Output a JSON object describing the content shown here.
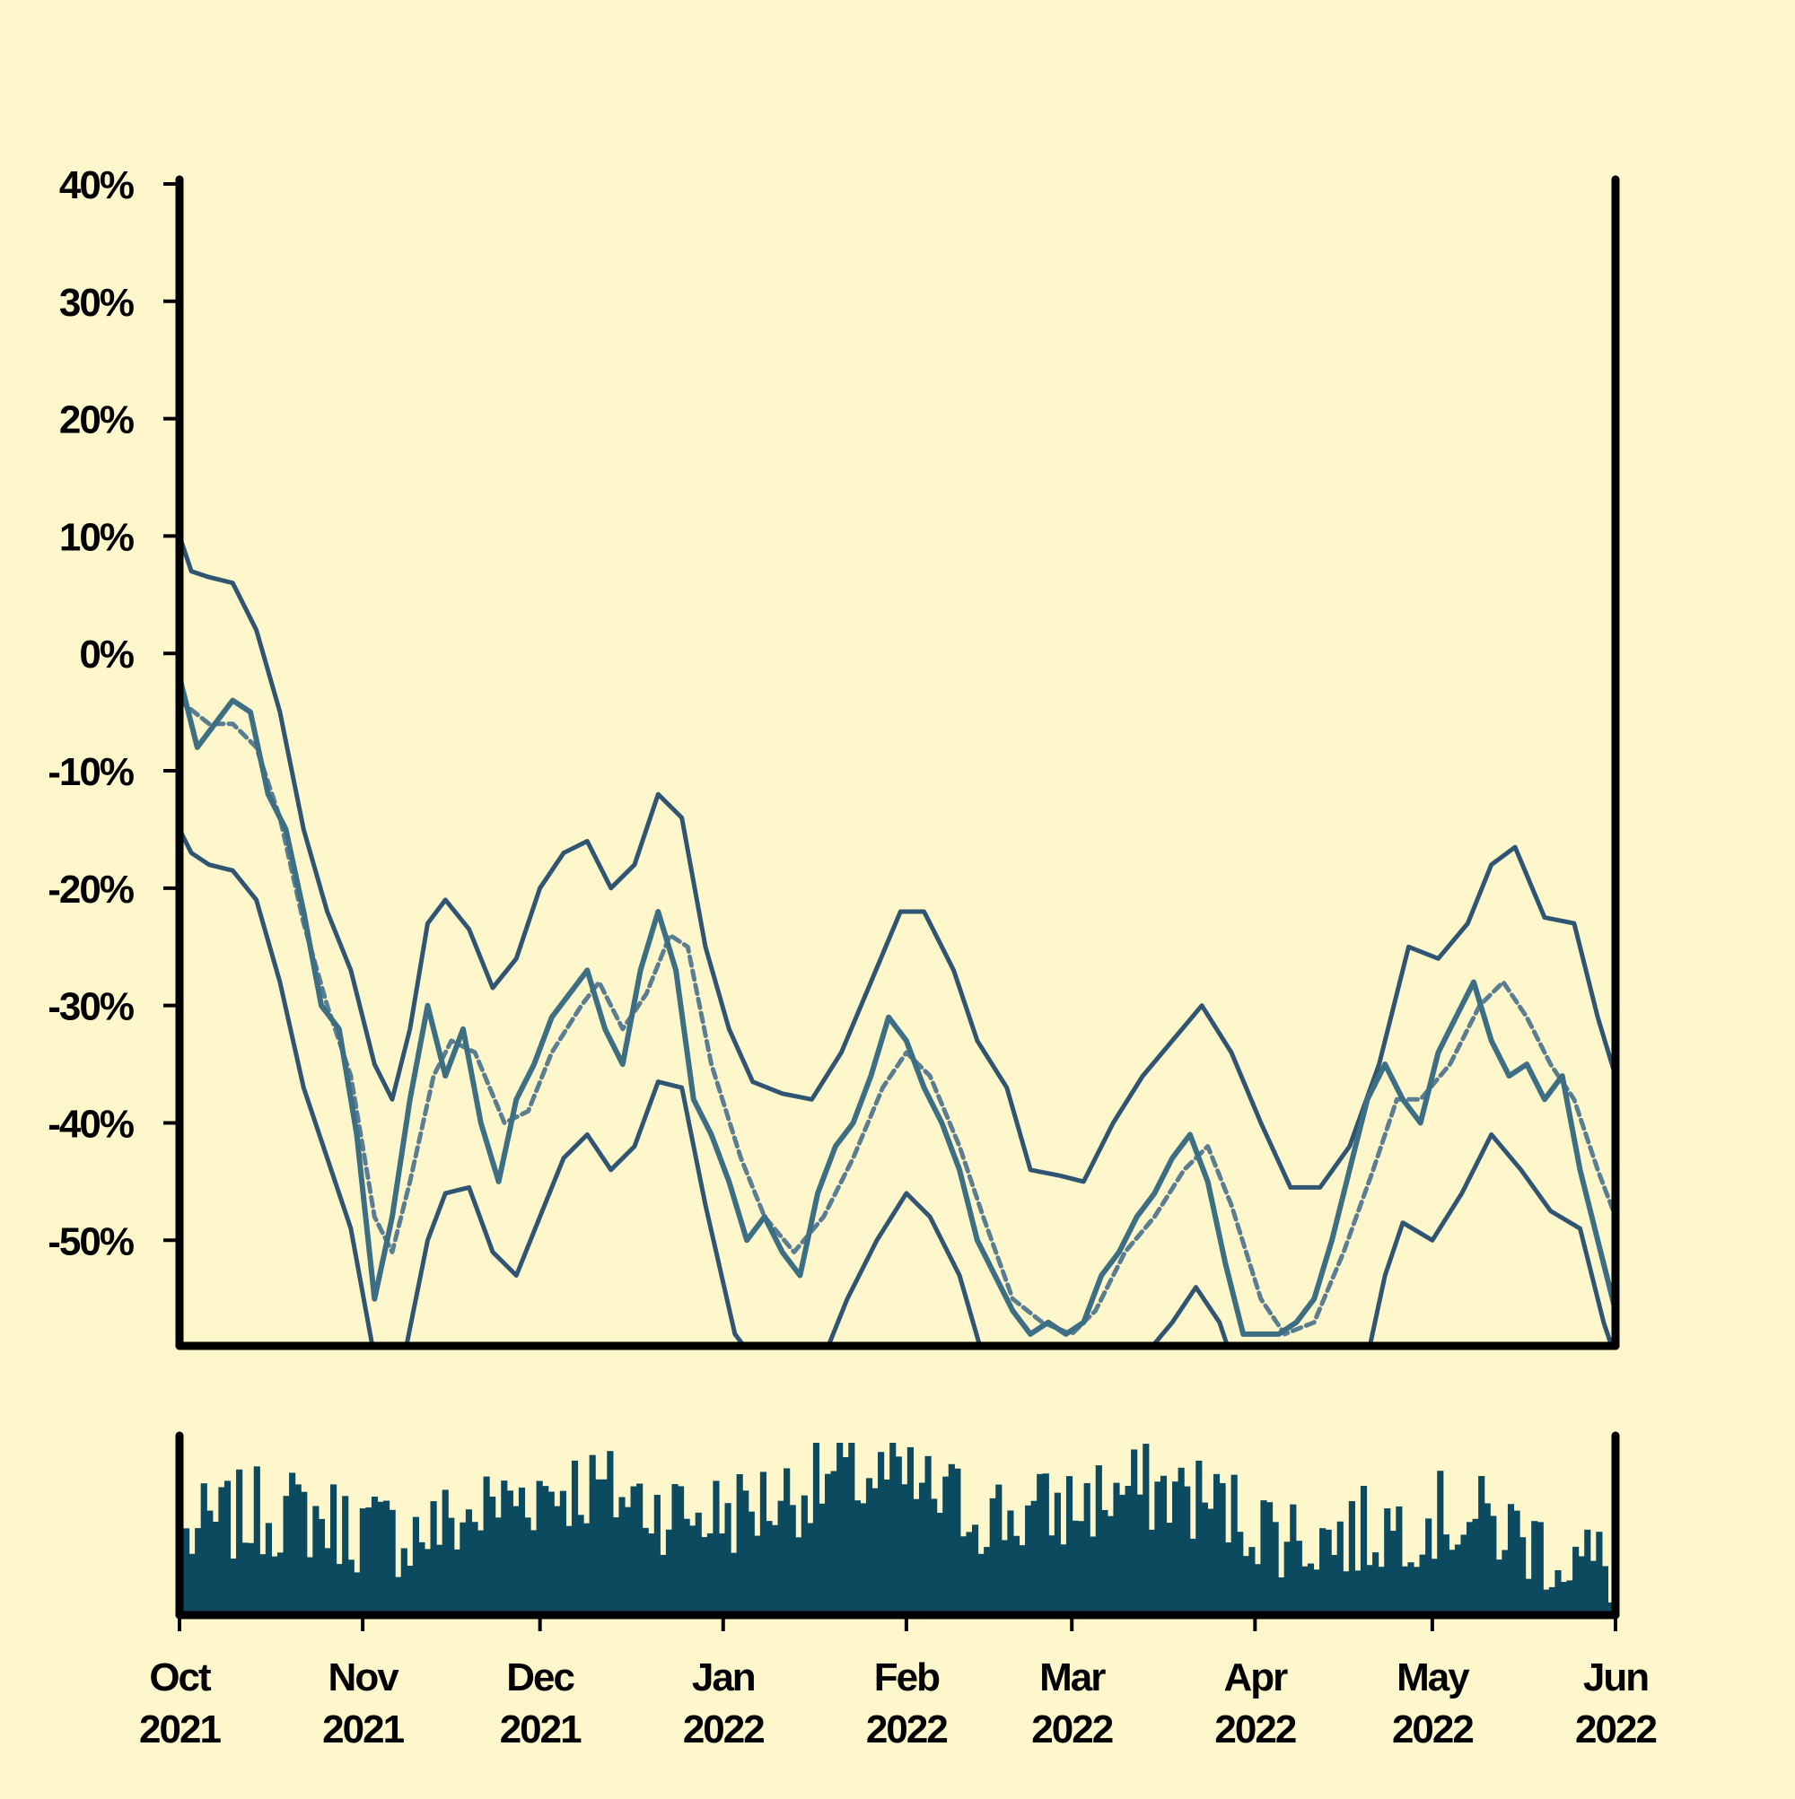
{
  "chart_data": {
    "type": "line",
    "x_range": [
      "2021-10-01",
      "2022-06-01"
    ],
    "x_ticks": [
      {
        "date": "2021-10-01",
        "month": "Oct",
        "year": "2021"
      },
      {
        "date": "2021-11-01",
        "month": "Nov",
        "year": "2021"
      },
      {
        "date": "2021-12-01",
        "month": "Dec",
        "year": "2021"
      },
      {
        "date": "2022-01-01",
        "month": "Jan",
        "year": "2022"
      },
      {
        "date": "2022-02-01",
        "month": "Feb",
        "year": "2022"
      },
      {
        "date": "2022-03-01",
        "month": "Mar",
        "year": "2022"
      },
      {
        "date": "2022-04-01",
        "month": "Apr",
        "year": "2022"
      },
      {
        "date": "2022-05-01",
        "month": "May",
        "year": "2022"
      },
      {
        "date": "2022-06-01",
        "month": "Jun",
        "year": "2022"
      }
    ],
    "y_ticks": [
      {
        "value": 40,
        "label": "40%"
      },
      {
        "value": 30,
        "label": "30%"
      },
      {
        "value": 20,
        "label": "20%"
      },
      {
        "value": 10,
        "label": "10%"
      },
      {
        "value": 0,
        "label": "0%"
      },
      {
        "value": -10,
        "label": "-10%"
      },
      {
        "value": -20,
        "label": "-20%"
      },
      {
        "value": -30,
        "label": "-30%"
      },
      {
        "value": -40,
        "label": "-40%"
      },
      {
        "value": -50,
        "label": "-50%"
      }
    ],
    "ylim": [
      -59,
      40
    ],
    "grid": false,
    "colors": {
      "background": "#fef7cc",
      "series_line": "#3c6e84",
      "band_line": "#2f5573",
      "moving_average": "#5b7d92",
      "volume_bar": "#0c4a5f",
      "axis": "#000000"
    },
    "series": [
      {
        "role": "price",
        "points": [
          [
            "2021-10-01",
            -2
          ],
          [
            "2021-10-04",
            -8
          ],
          [
            "2021-10-07",
            -6
          ],
          [
            "2021-10-10",
            -4
          ],
          [
            "2021-10-13",
            -5
          ],
          [
            "2021-10-16",
            -12
          ],
          [
            "2021-10-19",
            -15
          ],
          [
            "2021-10-22",
            -22
          ],
          [
            "2021-10-25",
            -30
          ],
          [
            "2021-10-28",
            -32
          ],
          [
            "2021-10-31",
            -41
          ],
          [
            "2021-11-03",
            -55
          ],
          [
            "2021-11-06",
            -48
          ],
          [
            "2021-11-09",
            -38
          ],
          [
            "2021-11-12",
            -30
          ],
          [
            "2021-11-15",
            -36
          ],
          [
            "2021-11-18",
            -32
          ],
          [
            "2021-11-21",
            -40
          ],
          [
            "2021-11-24",
            -45
          ],
          [
            "2021-11-27",
            -38
          ],
          [
            "2021-11-30",
            -35
          ],
          [
            "2021-12-03",
            -31
          ],
          [
            "2021-12-06",
            -29
          ],
          [
            "2021-12-09",
            -27
          ],
          [
            "2021-12-12",
            -32
          ],
          [
            "2021-12-15",
            -35
          ],
          [
            "2021-12-18",
            -27
          ],
          [
            "2021-12-21",
            -22
          ],
          [
            "2021-12-24",
            -27
          ],
          [
            "2021-12-27",
            -38
          ],
          [
            "2021-12-30",
            -41
          ],
          [
            "2022-01-02",
            -45
          ],
          [
            "2022-01-05",
            -50
          ],
          [
            "2022-01-08",
            -48
          ],
          [
            "2022-01-11",
            -51
          ],
          [
            "2022-01-14",
            -53
          ],
          [
            "2022-01-17",
            -46
          ],
          [
            "2022-01-20",
            -42
          ],
          [
            "2022-01-23",
            -40
          ],
          [
            "2022-01-26",
            -36
          ],
          [
            "2022-01-29",
            -31
          ],
          [
            "2022-02-01",
            -33
          ],
          [
            "2022-02-04",
            -37
          ],
          [
            "2022-02-07",
            -40
          ],
          [
            "2022-02-10",
            -44
          ],
          [
            "2022-02-13",
            -50
          ],
          [
            "2022-02-16",
            -53
          ],
          [
            "2022-02-19",
            -56
          ],
          [
            "2022-02-22",
            -58
          ],
          [
            "2022-02-25",
            -57
          ],
          [
            "2022-02-28",
            -58
          ],
          [
            "2022-03-03",
            -57
          ],
          [
            "2022-03-06",
            -53
          ],
          [
            "2022-03-09",
            -51
          ],
          [
            "2022-03-12",
            -48
          ],
          [
            "2022-03-15",
            -46
          ],
          [
            "2022-03-18",
            -43
          ],
          [
            "2022-03-21",
            -41
          ],
          [
            "2022-03-24",
            -45
          ],
          [
            "2022-03-27",
            -52
          ],
          [
            "2022-03-30",
            -58
          ],
          [
            "2022-04-02",
            -58
          ],
          [
            "2022-04-05",
            -58
          ],
          [
            "2022-04-08",
            -57
          ],
          [
            "2022-04-11",
            -55
          ],
          [
            "2022-04-14",
            -50
          ],
          [
            "2022-04-17",
            -44
          ],
          [
            "2022-04-20",
            -38
          ],
          [
            "2022-04-23",
            -35
          ],
          [
            "2022-04-26",
            -38
          ],
          [
            "2022-04-29",
            -40
          ],
          [
            "2022-05-02",
            -34
          ],
          [
            "2022-05-05",
            -31
          ],
          [
            "2022-05-08",
            -28
          ],
          [
            "2022-05-11",
            -33
          ],
          [
            "2022-05-14",
            -36
          ],
          [
            "2022-05-17",
            -35
          ],
          [
            "2022-05-20",
            -38
          ],
          [
            "2022-05-23",
            -36
          ],
          [
            "2022-05-26",
            -44
          ],
          [
            "2022-05-29",
            -50
          ],
          [
            "2022-06-01",
            -56
          ]
        ]
      },
      {
        "role": "moving-average",
        "points": [
          [
            "2021-10-01",
            -4
          ],
          [
            "2021-10-06",
            -6
          ],
          [
            "2021-10-10",
            -6
          ],
          [
            "2021-10-14",
            -8
          ],
          [
            "2021-10-18",
            -14
          ],
          [
            "2021-10-22",
            -23
          ],
          [
            "2021-10-26",
            -30
          ],
          [
            "2021-10-30",
            -36
          ],
          [
            "2021-11-03",
            -48
          ],
          [
            "2021-11-06",
            -51
          ],
          [
            "2021-11-09",
            -45
          ],
          [
            "2021-11-13",
            -36
          ],
          [
            "2021-11-16",
            -33
          ],
          [
            "2021-11-20",
            -34
          ],
          [
            "2021-11-25",
            -40
          ],
          [
            "2021-11-29",
            -39
          ],
          [
            "2021-12-03",
            -34
          ],
          [
            "2021-12-08",
            -30
          ],
          [
            "2021-12-11",
            -28
          ],
          [
            "2021-12-15",
            -32
          ],
          [
            "2021-12-19",
            -29
          ],
          [
            "2021-12-23",
            -24
          ],
          [
            "2021-12-26",
            -25
          ],
          [
            "2021-12-30",
            -35
          ],
          [
            "2022-01-04",
            -43
          ],
          [
            "2022-01-08",
            -48
          ],
          [
            "2022-01-13",
            -51
          ],
          [
            "2022-01-18",
            -48
          ],
          [
            "2022-01-23",
            -43
          ],
          [
            "2022-01-28",
            -37
          ],
          [
            "2022-02-01",
            -34
          ],
          [
            "2022-02-05",
            -36
          ],
          [
            "2022-02-10",
            -42
          ],
          [
            "2022-02-14",
            -48
          ],
          [
            "2022-02-19",
            -55
          ],
          [
            "2022-02-24",
            -57
          ],
          [
            "2022-03-01",
            -58
          ],
          [
            "2022-03-05",
            -56
          ],
          [
            "2022-03-10",
            -51
          ],
          [
            "2022-03-15",
            -48
          ],
          [
            "2022-03-20",
            -44
          ],
          [
            "2022-03-24",
            -42
          ],
          [
            "2022-03-28",
            -47
          ],
          [
            "2022-04-02",
            -55
          ],
          [
            "2022-04-06",
            -58
          ],
          [
            "2022-04-11",
            -57
          ],
          [
            "2022-04-16",
            -51
          ],
          [
            "2022-04-21",
            -44
          ],
          [
            "2022-04-25",
            -38
          ],
          [
            "2022-04-29",
            -38
          ],
          [
            "2022-05-04",
            -35
          ],
          [
            "2022-05-09",
            -30
          ],
          [
            "2022-05-13",
            -28
          ],
          [
            "2022-05-17",
            -31
          ],
          [
            "2022-05-21",
            -35
          ],
          [
            "2022-05-25",
            -38
          ],
          [
            "2022-05-29",
            -44
          ],
          [
            "2022-06-01",
            -48
          ]
        ]
      },
      {
        "role": "upper-band",
        "points": [
          [
            "2021-10-01",
            10
          ],
          [
            "2021-10-03",
            7
          ],
          [
            "2021-10-06",
            6.5
          ],
          [
            "2021-10-10",
            6
          ],
          [
            "2021-10-14",
            2
          ],
          [
            "2021-10-18",
            -5
          ],
          [
            "2021-10-22",
            -15
          ],
          [
            "2021-10-26",
            -22
          ],
          [
            "2021-10-30",
            -27
          ],
          [
            "2021-11-03",
            -35
          ],
          [
            "2021-11-06",
            -38
          ],
          [
            "2021-11-09",
            -32
          ],
          [
            "2021-11-12",
            -23
          ],
          [
            "2021-11-15",
            -21
          ],
          [
            "2021-11-19",
            -23.5
          ],
          [
            "2021-11-23",
            -28.5
          ],
          [
            "2021-11-27",
            -26
          ],
          [
            "2021-12-01",
            -20
          ],
          [
            "2021-12-05",
            -17
          ],
          [
            "2021-12-09",
            -16
          ],
          [
            "2021-12-13",
            -20
          ],
          [
            "2021-12-17",
            -18
          ],
          [
            "2021-12-21",
            -12
          ],
          [
            "2021-12-25",
            -14
          ],
          [
            "2021-12-29",
            -25
          ],
          [
            "2022-01-02",
            -32
          ],
          [
            "2022-01-06",
            -36.5
          ],
          [
            "2022-01-11",
            -37.5
          ],
          [
            "2022-01-16",
            -38
          ],
          [
            "2022-01-21",
            -34
          ],
          [
            "2022-01-26",
            -28
          ],
          [
            "2022-01-31",
            -22
          ],
          [
            "2022-02-04",
            -22
          ],
          [
            "2022-02-09",
            -27
          ],
          [
            "2022-02-13",
            -33
          ],
          [
            "2022-02-18",
            -37
          ],
          [
            "2022-02-22",
            -44
          ],
          [
            "2022-02-27",
            -44.5
          ],
          [
            "2022-03-03",
            -45
          ],
          [
            "2022-03-08",
            -40
          ],
          [
            "2022-03-13",
            -36
          ],
          [
            "2022-03-18",
            -33
          ],
          [
            "2022-03-23",
            -30
          ],
          [
            "2022-03-28",
            -34
          ],
          [
            "2022-04-02",
            -40
          ],
          [
            "2022-04-07",
            -45.5
          ],
          [
            "2022-04-12",
            -45.5
          ],
          [
            "2022-04-17",
            -42
          ],
          [
            "2022-04-22",
            -35
          ],
          [
            "2022-04-27",
            -25
          ],
          [
            "2022-05-02",
            -26
          ],
          [
            "2022-05-07",
            -23
          ],
          [
            "2022-05-11",
            -18
          ],
          [
            "2022-05-15",
            -16.5
          ],
          [
            "2022-05-20",
            -22.5
          ],
          [
            "2022-05-25",
            -23
          ],
          [
            "2022-05-29",
            -31
          ],
          [
            "2022-06-01",
            -36
          ]
        ]
      },
      {
        "role": "lower-band",
        "points": [
          [
            "2021-10-01",
            -15
          ],
          [
            "2021-10-03",
            -17
          ],
          [
            "2021-10-06",
            -18
          ],
          [
            "2021-10-10",
            -18.5
          ],
          [
            "2021-10-14",
            -21
          ],
          [
            "2021-10-18",
            -28
          ],
          [
            "2021-10-22",
            -37
          ],
          [
            "2021-10-26",
            -43
          ],
          [
            "2021-10-30",
            -49
          ],
          [
            "2021-11-03",
            -60
          ],
          [
            "2021-11-08",
            -60
          ],
          [
            "2021-11-12",
            -50
          ],
          [
            "2021-11-15",
            -46
          ],
          [
            "2021-11-19",
            -45.5
          ],
          [
            "2021-11-23",
            -51
          ],
          [
            "2021-11-27",
            -53
          ],
          [
            "2021-12-01",
            -48
          ],
          [
            "2021-12-05",
            -43
          ],
          [
            "2021-12-09",
            -41
          ],
          [
            "2021-12-13",
            -44
          ],
          [
            "2021-12-17",
            -42
          ],
          [
            "2021-12-21",
            -36.5
          ],
          [
            "2021-12-25",
            -37
          ],
          [
            "2021-12-29",
            -47
          ],
          [
            "2022-01-03",
            -58
          ],
          [
            "2022-01-06",
            -60
          ],
          [
            "2022-01-18",
            -60
          ],
          [
            "2022-01-22",
            -55
          ],
          [
            "2022-01-27",
            -50
          ],
          [
            "2022-02-01",
            -46
          ],
          [
            "2022-02-05",
            -48
          ],
          [
            "2022-02-10",
            -53
          ],
          [
            "2022-02-14",
            -60
          ],
          [
            "2022-03-13",
            -60
          ],
          [
            "2022-03-18",
            -57
          ],
          [
            "2022-03-22",
            -54
          ],
          [
            "2022-03-26",
            -57
          ],
          [
            "2022-03-28",
            -60
          ],
          [
            "2022-04-20",
            -60
          ],
          [
            "2022-04-23",
            -53
          ],
          [
            "2022-04-26",
            -48.5
          ],
          [
            "2022-05-01",
            -50
          ],
          [
            "2022-05-06",
            -46
          ],
          [
            "2022-05-11",
            -41
          ],
          [
            "2022-05-16",
            -44
          ],
          [
            "2022-05-21",
            -47.5
          ],
          [
            "2022-05-26",
            -49
          ],
          [
            "2022-05-30",
            -57
          ],
          [
            "2022-06-01",
            -60
          ]
        ]
      }
    ],
    "volume": {
      "range": [
        0,
        1
      ],
      "seed": 7,
      "count": 243
    }
  }
}
